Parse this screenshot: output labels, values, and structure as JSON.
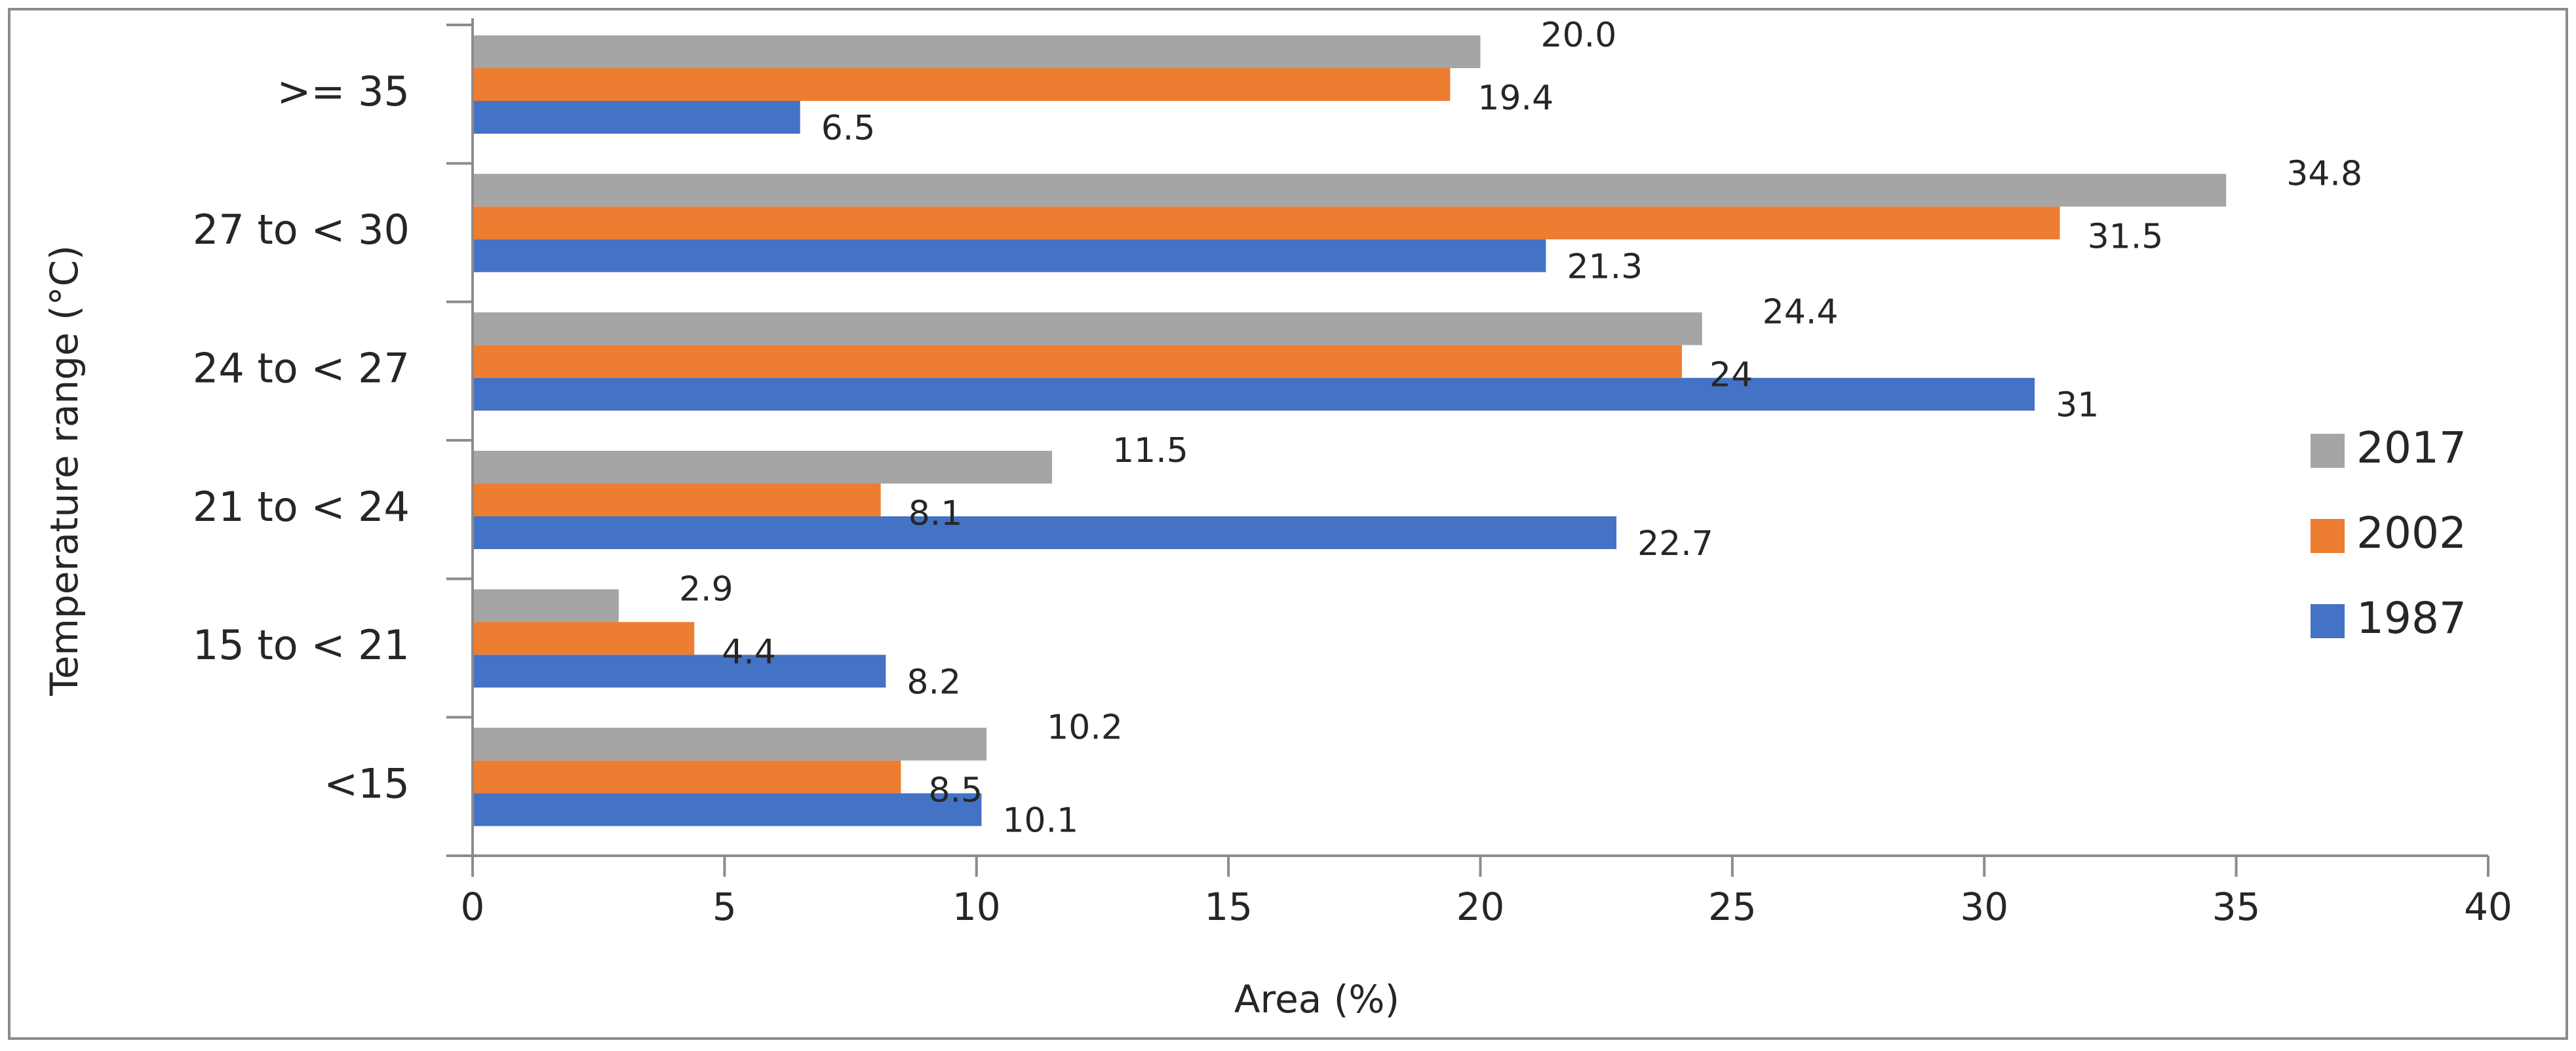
{
  "chart_data": {
    "type": "bar",
    "orientation": "horizontal",
    "title": "",
    "xlabel": "Area (%)",
    "ylabel": "Temperature range (°C)",
    "xlim": [
      0,
      40
    ],
    "xticks": [
      0,
      5,
      10,
      15,
      20,
      25,
      30,
      35,
      40
    ],
    "grid": false,
    "legend_position": "right",
    "categories": [
      ">= 35",
      "27 to < 30",
      "24 to < 27",
      "21 to < 24",
      "15 to < 21",
      "<15"
    ],
    "series": [
      {
        "name": "2017",
        "color": "#a5a5a5",
        "values": [
          20.0,
          34.8,
          24.4,
          11.5,
          2.9,
          10.2
        ],
        "labels": [
          "20.0",
          "34.8",
          "24.4",
          "11.5",
          "2.9",
          "10.2"
        ]
      },
      {
        "name": "2002",
        "color": "#ed7d31",
        "values": [
          19.4,
          31.5,
          24,
          8.1,
          4.4,
          8.5
        ],
        "labels": [
          "19.4",
          "31.5",
          "24",
          "8.1",
          "4.4",
          "8.5"
        ]
      },
      {
        "name": "1987",
        "color": "#4472c4",
        "values": [
          6.5,
          21.3,
          31,
          22.7,
          8.2,
          10.1
        ],
        "labels": [
          "6.5",
          "21.3",
          "31",
          "22.7",
          "8.2",
          "10.1"
        ]
      }
    ]
  }
}
